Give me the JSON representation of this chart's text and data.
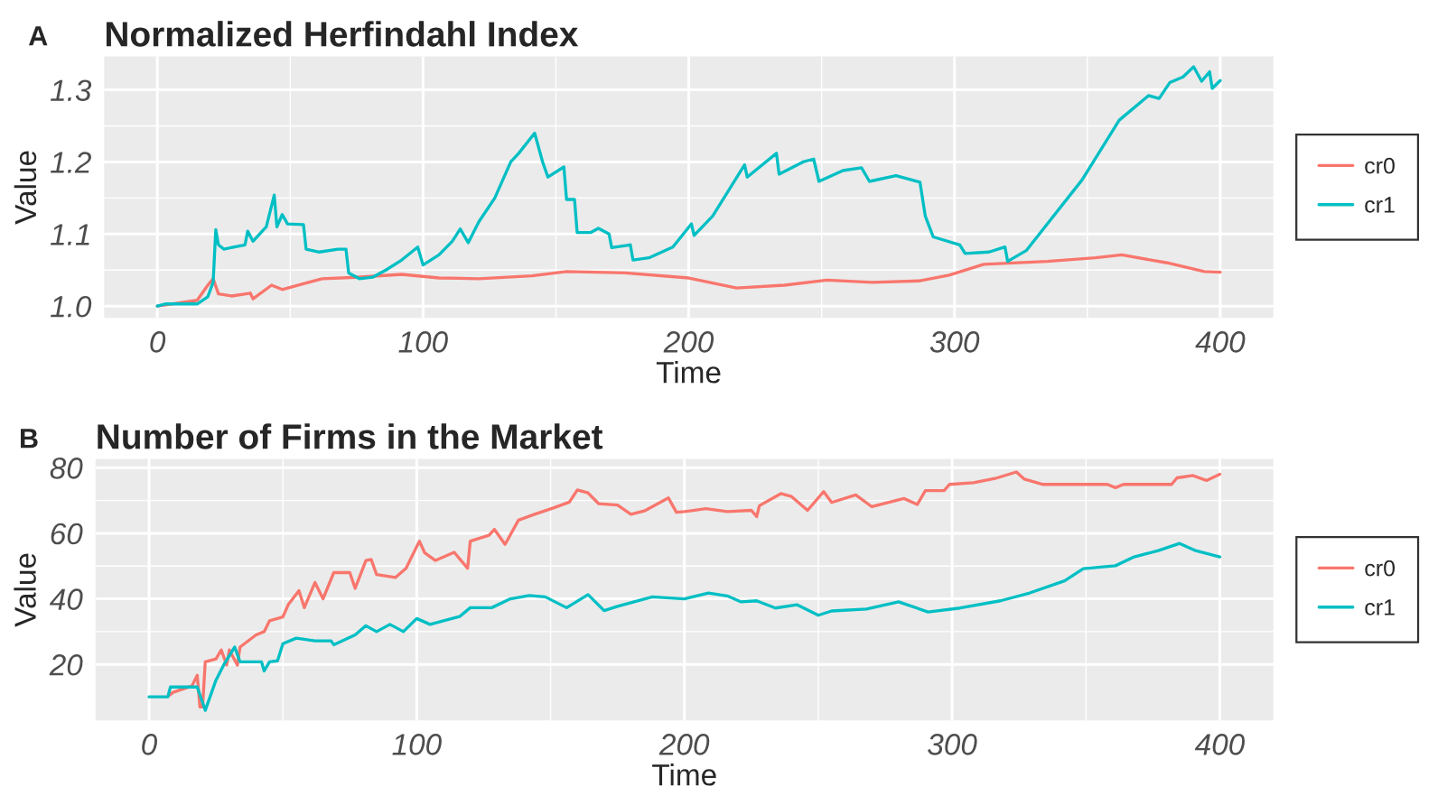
{
  "chart_data": [
    {
      "type": "line",
      "title": "Normalized Herfindahl Index",
      "xlabel": "Time",
      "ylabel": "Value",
      "annotations": [
        "A"
      ],
      "xlim": [
        -20,
        420
      ],
      "xticks": [
        0,
        100,
        200,
        300,
        400
      ],
      "ylim": [
        0.9835,
        1.3465
      ],
      "yticks": [
        {
          "value": 1.0,
          "label": "1.0"
        },
        1.1,
        1.2,
        1.3
      ],
      "grid": true,
      "legend": "right",
      "line_style": "solid",
      "marker": "none",
      "series": [
        {
          "name": "cr0",
          "color": "#f8766d",
          "x": [
            0,
            15,
            19,
            21,
            23,
            28,
            35,
            36,
            43,
            47,
            55,
            62,
            75,
            92,
            106,
            121,
            141,
            154,
            176,
            200,
            218,
            236,
            252,
            269,
            287,
            298,
            311,
            335,
            353,
            363,
            380,
            394,
            400
          ],
          "values": [
            1.0,
            1.008,
            1.029,
            1.038,
            1.017,
            1.014,
            1.018,
            1.01,
            1.029,
            1.023,
            1.031,
            1.038,
            1.04,
            1.044,
            1.039,
            1.038,
            1.042,
            1.048,
            1.046,
            1.039,
            1.025,
            1.029,
            1.036,
            1.033,
            1.035,
            1.043,
            1.058,
            1.062,
            1.067,
            1.071,
            1.06,
            1.048,
            1.047
          ]
        },
        {
          "name": "cr1",
          "color": "#00bfc4",
          "x": [
            0,
            3,
            15,
            19,
            21,
            22,
            23,
            25,
            33,
            34,
            36,
            41,
            44,
            45,
            47,
            49,
            55,
            56,
            61,
            68,
            71,
            72,
            76,
            81,
            86,
            92,
            98,
            100,
            106,
            111,
            114,
            117,
            121,
            127,
            133,
            136,
            142,
            145,
            147,
            153,
            154,
            157,
            158,
            163,
            166,
            170,
            171,
            178,
            179,
            185,
            194,
            201,
            202,
            209,
            221,
            222,
            233,
            234,
            243,
            247,
            249,
            258,
            265,
            268,
            278,
            287,
            289,
            292,
            302,
            304,
            313,
            319,
            320,
            327,
            348,
            362,
            373,
            377,
            381,
            386,
            390,
            393,
            396,
            397,
            400
          ],
          "values": [
            1.0,
            1.003,
            1.003,
            1.013,
            1.033,
            1.106,
            1.085,
            1.079,
            1.085,
            1.104,
            1.09,
            1.11,
            1.154,
            1.11,
            1.127,
            1.114,
            1.113,
            1.079,
            1.075,
            1.079,
            1.079,
            1.046,
            1.038,
            1.04,
            1.05,
            1.064,
            1.082,
            1.057,
            1.071,
            1.09,
            1.107,
            1.088,
            1.117,
            1.15,
            1.2,
            1.212,
            1.24,
            1.2,
            1.179,
            1.193,
            1.148,
            1.148,
            1.102,
            1.102,
            1.108,
            1.1,
            1.081,
            1.085,
            1.064,
            1.067,
            1.082,
            1.114,
            1.098,
            1.125,
            1.196,
            1.179,
            1.212,
            1.183,
            1.2,
            1.204,
            1.173,
            1.188,
            1.192,
            1.173,
            1.181,
            1.172,
            1.125,
            1.096,
            1.085,
            1.073,
            1.075,
            1.082,
            1.062,
            1.077,
            1.175,
            1.258,
            1.292,
            1.288,
            1.31,
            1.318,
            1.332,
            1.312,
            1.325,
            1.302,
            1.313
          ]
        }
      ]
    },
    {
      "type": "line",
      "title": "Number of Firms in the Market",
      "xlabel": "Time",
      "ylabel": "Value",
      "annotations": [
        "B"
      ],
      "xlim": [
        -20,
        420
      ],
      "xticks": [
        0,
        100,
        200,
        300,
        400
      ],
      "ylim": [
        2.9,
        82.7
      ],
      "yticks": [
        20,
        40,
        60,
        80
      ],
      "grid": true,
      "legend": "right",
      "line_style": "solid",
      "marker": "none",
      "series": [
        {
          "name": "cr0",
          "color": "#f8766d",
          "x": [
            7,
            9,
            16,
            18,
            19,
            20,
            21,
            25,
            27,
            29,
            30,
            33,
            34,
            40,
            43,
            45,
            50,
            52,
            56,
            58,
            62,
            65,
            69,
            75,
            77,
            81,
            83,
            85,
            92,
            96,
            101,
            103,
            107,
            114,
            119,
            120,
            127,
            129,
            133,
            138,
            144,
            151,
            157,
            160,
            164,
            168,
            175,
            180,
            185,
            194,
            197,
            200,
            208,
            216,
            225,
            227,
            228,
            236,
            240,
            246,
            252,
            255,
            264,
            270,
            282,
            287,
            290,
            297,
            299,
            308,
            316,
            324,
            327,
            334,
            358,
            361,
            364,
            382,
            384,
            390,
            395,
            400
          ],
          "values": [
            10.2,
            11.5,
            13.4,
            16.7,
            7,
            7,
            20.8,
            21.7,
            24.4,
            19.8,
            24.4,
            19.8,
            25.3,
            29,
            30,
            33.3,
            34.5,
            38.2,
            42.5,
            37.3,
            45,
            40,
            48,
            48,
            43.2,
            51.7,
            52,
            47.4,
            46.5,
            49.3,
            57.6,
            54,
            51.7,
            54.2,
            49.3,
            57.6,
            59.4,
            61.2,
            56.6,
            64,
            65.8,
            67.7,
            69.5,
            73.2,
            72.3,
            69,
            68.6,
            65.8,
            66.8,
            70.8,
            66.4,
            66.6,
            67.5,
            66.6,
            67,
            65.1,
            68.4,
            72.1,
            71.2,
            67,
            72.7,
            69.4,
            71.7,
            68.1,
            70.6,
            68.8,
            73,
            73,
            74.9,
            75.4,
            76.7,
            78.7,
            76.5,
            74.9,
            74.9,
            73.9,
            74.9,
            74.9,
            76.9,
            77.6,
            76.1,
            78
          ]
        },
        {
          "name": "cr1",
          "color": "#00bfc4",
          "x": [
            0,
            7,
            8,
            18,
            21,
            25,
            28,
            32,
            34,
            42,
            43,
            45,
            48,
            50,
            55,
            62,
            68,
            69,
            77,
            81,
            85,
            90,
            95,
            100,
            105,
            116,
            120,
            128,
            135,
            142,
            148,
            156,
            164,
            170,
            175,
            188,
            200,
            209,
            216,
            221,
            227,
            234,
            242,
            250,
            255,
            268,
            280,
            291,
            303,
            318,
            329,
            342,
            349,
            361,
            368,
            377,
            385,
            391,
            400
          ],
          "values": [
            10.1,
            10.1,
            13.1,
            13.1,
            6,
            15.2,
            20,
            25.3,
            20.8,
            20.8,
            18,
            20.8,
            21.1,
            26.3,
            28,
            27.2,
            27.2,
            26,
            29,
            31.8,
            30,
            32.2,
            30,
            34,
            32.2,
            34.6,
            37.3,
            37.3,
            40,
            41,
            40.6,
            37.3,
            41.3,
            36.4,
            37.7,
            40.6,
            40,
            41.8,
            40.9,
            39.1,
            39.4,
            37.2,
            38.2,
            35,
            36.3,
            36.9,
            39.1,
            36,
            37.2,
            39.4,
            41.8,
            45.5,
            49.2,
            50.1,
            52.8,
            54.7,
            56.9,
            54.7,
            52.8
          ]
        }
      ]
    }
  ]
}
